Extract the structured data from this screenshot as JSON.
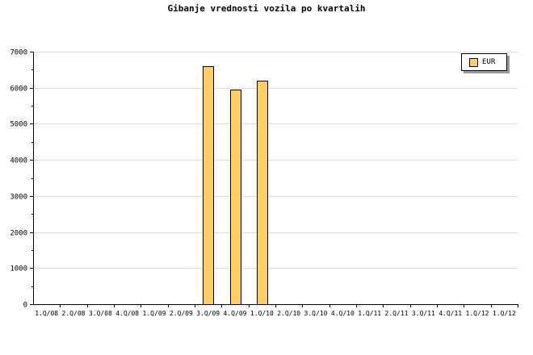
{
  "chart_data": {
    "type": "bar",
    "title": "Gibanje vrednosti vozila po kvartalih",
    "categories": [
      "1.Q/08",
      "2.Q/08",
      "3.Q/08",
      "4.Q/08",
      "1.Q/09",
      "2.Q/09",
      "3.Q/09",
      "4.Q/09",
      "1.Q/10",
      "2.Q/10",
      "3.Q/10",
      "4.Q/10",
      "1.Q/11",
      "2.Q/11",
      "3.Q/11",
      "4.Q/11",
      "1.Q/12",
      "1.Q/12"
    ],
    "series": [
      {
        "name": "EUR",
        "values": [
          null,
          null,
          null,
          null,
          null,
          null,
          6600,
          5950,
          6200,
          null,
          null,
          null,
          null,
          null,
          null,
          null,
          null,
          null
        ],
        "color": "#FFCC66"
      }
    ],
    "ylim": [
      0,
      7000
    ],
    "yticks": [
      0,
      1000,
      2000,
      3000,
      4000,
      5000,
      6000,
      7000
    ],
    "grid": true,
    "legend": "top-right",
    "xlabel": "",
    "ylabel": ""
  }
}
